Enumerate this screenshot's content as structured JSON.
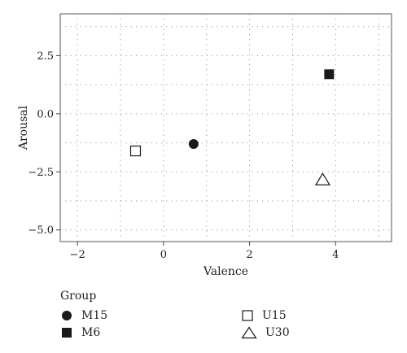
{
  "chart_data": {
    "type": "scatter",
    "xlabel": "Valence",
    "ylabel": "Arousal",
    "xlim": [
      -2.4,
      5.3
    ],
    "ylim": [
      -5.5,
      4.3
    ],
    "xticks": [
      -2,
      0,
      2,
      4
    ],
    "yticks": [
      -5.0,
      -2.5,
      0.0,
      2.5
    ],
    "xtick_labels": [
      "−2",
      "0",
      "2",
      "4"
    ],
    "ytick_labels": [
      "−5.0",
      "−2.5",
      "0.0",
      "2.5"
    ],
    "grid": true,
    "legend_title": "Group",
    "legend_position": "bottom",
    "series": [
      {
        "name": "M15",
        "marker": "filled-circle",
        "color": "#1a1a1a",
        "x": 0.7,
        "y": -1.3
      },
      {
        "name": "M6",
        "marker": "filled-square",
        "color": "#1a1a1a",
        "x": 3.85,
        "y": 1.7
      },
      {
        "name": "U15",
        "marker": "open-square",
        "color": "#1a1a1a",
        "x": -0.65,
        "y": -1.6
      },
      {
        "name": "U30",
        "marker": "open-triangle",
        "color": "#1a1a1a",
        "x": 3.7,
        "y": -2.85
      }
    ]
  }
}
